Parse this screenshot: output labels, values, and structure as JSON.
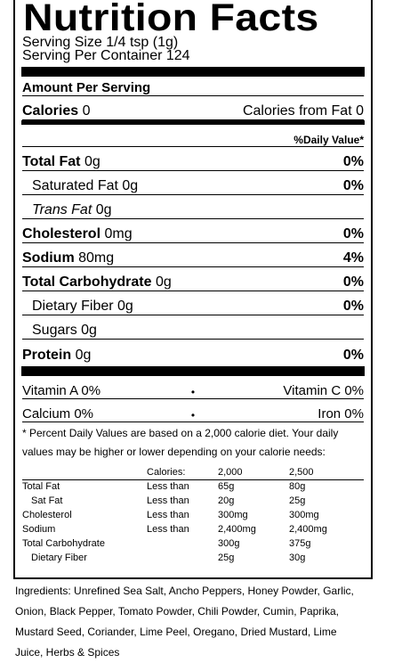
{
  "title": "Nutrition Facts",
  "serving_size": "Serving Size 1/4 tsp (1g)",
  "servings_per_container": "Serving Per Container 124",
  "amount_per_serving": "Amount Per Serving",
  "calories": {
    "label": "Calories",
    "value": "0",
    "from_fat": "Calories from Fat 0"
  },
  "daily_value_header": "%Daily Value*",
  "nutrients": [
    {
      "label": "Total Fat",
      "value": "0g",
      "pct": "0%"
    },
    {
      "label": "Saturated Fat",
      "value": "0g",
      "pct": "0%"
    },
    {
      "label": "Trans Fat",
      "value": "0g",
      "pct": ""
    },
    {
      "label": "Cholesterol",
      "value": "0mg",
      "pct": "0%"
    },
    {
      "label": "Sodium",
      "value": "80mg",
      "pct": "4%"
    },
    {
      "label": "Total Carbohydrate",
      "value": "0g",
      "pct": "0%"
    },
    {
      "label": "Dietary Fiber",
      "value": "0g",
      "pct": "0%"
    },
    {
      "label": "Sugars",
      "value": "0g",
      "pct": ""
    },
    {
      "label": "Protein",
      "value": "0g",
      "pct": "0%"
    }
  ],
  "vitamins": [
    {
      "left": "Vitamin A 0%",
      "dot": "•",
      "right": "Vitamin C 0%"
    },
    {
      "left": "Calcium 0%",
      "dot": "•",
      "right": "Iron 0%"
    }
  ],
  "footnote": "* Percent Daily Values are based on a 2,000 calorie diet. Your daily values may be higher or lower depending on your calorie needs:",
  "dv_table": {
    "header": [
      "",
      "Calories:",
      "2,000",
      "2,500"
    ],
    "rows": [
      [
        "Total Fat",
        "Less than",
        "65g",
        "80g"
      ],
      [
        "Sat Fat",
        "Less than",
        "20g",
        "25g"
      ],
      [
        "Cholesterol",
        "Less than",
        "300mg",
        "300mg"
      ],
      [
        "Sodium",
        "Less than",
        "2,400mg",
        "2,400mg"
      ],
      [
        "Total Carbohydrate",
        "",
        "300g",
        "375g"
      ],
      [
        "Dietary Fiber",
        "",
        "25g",
        "30g"
      ]
    ]
  },
  "ingredients": "Ingredients: Unrefined Sea Salt, Ancho Peppers, Honey Powder, Garlic, Onion, Black Pepper, Tomato Powder, Chili Powder, Cumin, Paprika, Mustard Seed, Coriander, Lime Peel, Oregano, Dried Mustard, Lime Juice, Herbs & Spices"
}
